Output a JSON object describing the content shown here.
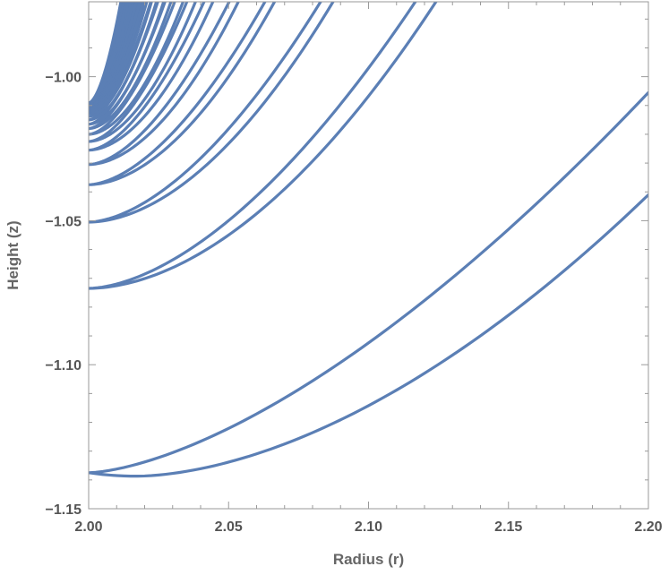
{
  "chart_data": {
    "type": "line",
    "title": "",
    "xlabel": "Radius (r)",
    "ylabel": "Height (z)",
    "xlim": [
      2.0,
      2.2
    ],
    "ylim": [
      -1.15,
      -0.974
    ],
    "grid": false,
    "legend": "none",
    "line_color": "#5b7fb5",
    "frame_color": "#9a9a9a",
    "xticks": [
      {
        "value": 2.0,
        "label": "2.00"
      },
      {
        "value": 2.05,
        "label": "2.05"
      },
      {
        "value": 2.1,
        "label": "2.10"
      },
      {
        "value": 2.15,
        "label": "2.15"
      },
      {
        "value": 2.2,
        "label": "2.20"
      }
    ],
    "yticks": [
      {
        "value": -1.15,
        "label": "−1.15"
      },
      {
        "value": -1.1,
        "label": "−1.10"
      },
      {
        "value": -1.05,
        "label": "−1.05"
      },
      {
        "value": -1.0,
        "label": "−1.00"
      }
    ],
    "curves": [
      {
        "z_min": -1.1387,
        "r_min": 2.017,
        "inner_z0": -1.1375,
        "inner_z_top": -1.0055,
        "outer_z_top": -1.041
      },
      {
        "z_min": -1.0735,
        "r_min": 2.004,
        "inner_z0": -1.0735,
        "inner_x_top": 2.13,
        "outer_x_top": 2.137
      },
      {
        "z_min": -1.0505,
        "r_min": 2.001,
        "inner_z0": -1.0505,
        "inner_x_top": 2.095,
        "outer_x_top": 2.099
      },
      {
        "z_min": -1.0375,
        "r_min": 2.0,
        "inner_z0": -1.0375,
        "inner_x_top": 2.074,
        "outer_x_top": 2.077
      },
      {
        "z_min": -1.0305,
        "r_min": 2.0,
        "inner_z0": -1.0305,
        "inner_x_top": 2.06,
        "outer_x_top": 2.063
      },
      {
        "z_min": -1.0255,
        "r_min": 2.0,
        "inner_z0": -1.0255,
        "inner_x_top": 2.05,
        "outer_x_top": 2.053
      },
      {
        "z_min": -1.0225,
        "r_min": 2.0,
        "inner_z0": -1.0225,
        "inner_x_top": 2.043,
        "outer_x_top": 2.046
      },
      {
        "z_min": -1.02,
        "r_min": 2.0,
        "inner_z0": -1.02,
        "inner_x_top": 2.038,
        "outer_x_top": 2.041
      },
      {
        "z_min": -1.018,
        "r_min": 2.0,
        "inner_z0": -1.018,
        "inner_x_top": 2.034,
        "outer_x_top": 2.036
      },
      {
        "z_min": -1.0165,
        "r_min": 2.0,
        "inner_z0": -1.0165,
        "inner_x_top": 2.031,
        "outer_x_top": 2.033
      },
      {
        "z_min": -1.015,
        "r_min": 2.0,
        "inner_z0": -1.015,
        "inner_x_top": 2.028,
        "outer_x_top": 2.03
      },
      {
        "z_min": -1.0138,
        "r_min": 2.0,
        "inner_z0": -1.0138,
        "inner_x_top": 2.026,
        "outer_x_top": 2.028
      },
      {
        "z_min": -1.0128,
        "r_min": 2.0,
        "inner_z0": -1.0128,
        "inner_x_top": 2.024,
        "outer_x_top": 2.026
      },
      {
        "z_min": -1.012,
        "r_min": 2.0,
        "inner_z0": -1.012,
        "inner_x_top": 2.0225,
        "outer_x_top": 2.0245
      },
      {
        "z_min": -1.0113,
        "r_min": 2.0,
        "inner_z0": -1.0113,
        "inner_x_top": 2.021,
        "outer_x_top": 2.023
      },
      {
        "z_min": -1.0107,
        "r_min": 2.0,
        "inner_z0": -1.0107,
        "inner_x_top": 2.0195,
        "outer_x_top": 2.0215
      },
      {
        "z_min": -1.0102,
        "r_min": 2.0,
        "inner_z0": -1.0102,
        "inner_x_top": 2.018,
        "outer_x_top": 2.02
      },
      {
        "z_min": -1.0098,
        "r_min": 2.0,
        "inner_z0": -1.0098,
        "inner_x_top": 2.017,
        "outer_x_top": 2.019
      },
      {
        "z_min": -1.0094,
        "r_min": 2.0,
        "inner_z0": -1.0094,
        "inner_x_top": 2.016,
        "outer_x_top": 2.018
      },
      {
        "z_min": -1.0091,
        "r_min": 2.0,
        "inner_z0": -1.0091,
        "inner_x_top": 2.015,
        "outer_x_top": 2.017
      }
    ]
  }
}
